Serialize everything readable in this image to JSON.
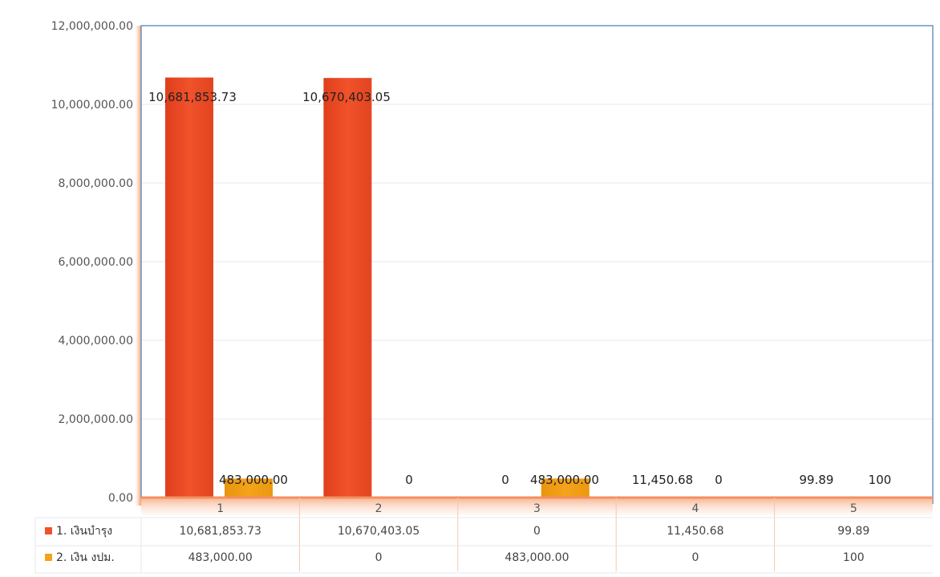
{
  "colors": {
    "series1": "#f0522a",
    "series2": "#f5a31a",
    "plot_border": "#6a93c8",
    "grid": "#e9e9e9",
    "axis_glow": "#f6b08a"
  },
  "chart_data": {
    "type": "bar",
    "categories": [
      "1",
      "2",
      "3",
      "4",
      "5"
    ],
    "series": [
      {
        "name": "1.  เงินบำรุง",
        "values": [
          10681853.73,
          10670403.05,
          0,
          11450.68,
          99.89
        ],
        "labels": [
          "10,681,853.73",
          "10,670,403.05",
          "0",
          "11,450.68",
          "99.89"
        ]
      },
      {
        "name": "2. เงิน งปม.",
        "values": [
          483000,
          0,
          483000,
          0,
          100
        ],
        "labels": [
          "483,000.00",
          "0",
          "483,000.00",
          "0",
          "100"
        ]
      }
    ],
    "ylim": [
      0,
      12000000
    ],
    "yticks": [
      0,
      2000000,
      4000000,
      6000000,
      8000000,
      10000000,
      12000000
    ],
    "ytick_labels": [
      "0.00",
      "2,000,000.00",
      "4,000,000.00",
      "6,000,000.00",
      "8,000,000.00",
      "10,000,000.00",
      "12,000,000.00"
    ],
    "grid": true,
    "data_table": true,
    "legend": "data-table-left"
  }
}
